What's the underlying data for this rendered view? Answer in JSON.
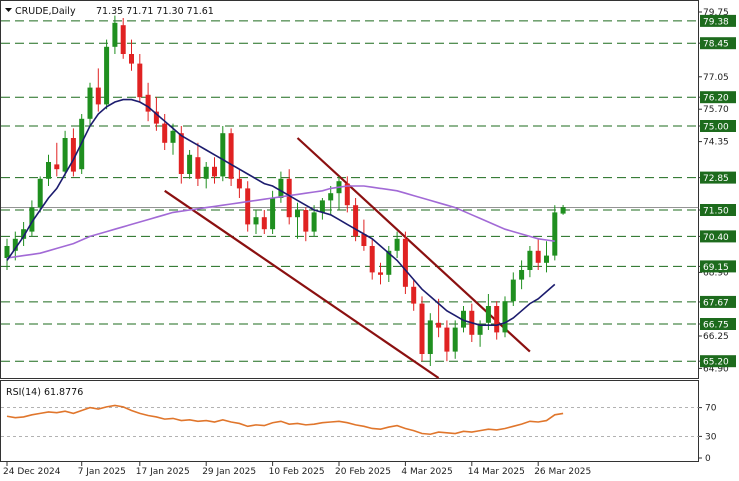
{
  "header": {
    "symbol": "CRUDE,Daily",
    "ohlc": "71.35 71.71 71.30 71.61"
  },
  "colors": {
    "bull": "#1f8f1f",
    "bear": "#e02222",
    "level_line": "#1d6b1d",
    "level_label_bg": "#1d6b1d",
    "fast_ma": "#1c1c6e",
    "slow_ma": "#a26ad6",
    "channel": "#8b1010",
    "rsi": "#e0762c",
    "last_price_line": "#555555"
  },
  "chart_data": [
    {
      "type": "candlestick",
      "title": "CRUDE,Daily",
      "ylim": [
        64.5,
        80.0
      ],
      "y_ticks": [
        "79.75",
        "78.45",
        "77.05",
        "76.20",
        "75.70",
        "75.00",
        "74.35",
        "72.85",
        "71.50",
        "70.40",
        "69.15",
        "68.90",
        "67.67",
        "66.75",
        "66.25",
        "65.20",
        "64.90"
      ],
      "x_labels": [
        "24 Dec 2024",
        "7 Jan 2025",
        "17 Jan 2025",
        "29 Jan 2025",
        "10 Feb 2025",
        "20 Feb 2025",
        "4 Mar 2025",
        "14 Mar 2025",
        "26 Mar 2025"
      ],
      "x_label_index": [
        0,
        9,
        16,
        24,
        32,
        40,
        48,
        56,
        64
      ],
      "levels": [
        79.38,
        78.45,
        76.2,
        75.0,
        72.85,
        71.5,
        70.4,
        69.15,
        67.67,
        66.75,
        65.2
      ],
      "level_labels": [
        "79.38",
        "78.45",
        "76.20",
        "75.00",
        "72.85",
        "71.50",
        "70.40",
        "69.15",
        "67.67",
        "66.75",
        "65.20"
      ],
      "candles": [
        {
          "o": 69.5,
          "h": 70.3,
          "l": 69.0,
          "c": 70.0
        },
        {
          "o": 69.8,
          "h": 70.6,
          "l": 69.4,
          "c": 70.3
        },
        {
          "o": 70.3,
          "h": 71.0,
          "l": 70.0,
          "c": 70.7
        },
        {
          "o": 70.6,
          "h": 71.9,
          "l": 70.4,
          "c": 71.6
        },
        {
          "o": 71.6,
          "h": 72.9,
          "l": 71.4,
          "c": 72.8
        },
        {
          "o": 72.8,
          "h": 73.8,
          "l": 72.5,
          "c": 73.5
        },
        {
          "o": 73.4,
          "h": 74.3,
          "l": 72.9,
          "c": 73.2
        },
        {
          "o": 73.1,
          "h": 74.8,
          "l": 72.9,
          "c": 74.5
        },
        {
          "o": 74.5,
          "h": 74.9,
          "l": 72.9,
          "c": 73.1
        },
        {
          "o": 73.2,
          "h": 75.5,
          "l": 73.0,
          "c": 75.3
        },
        {
          "o": 75.3,
          "h": 76.8,
          "l": 75.0,
          "c": 76.6
        },
        {
          "o": 76.6,
          "h": 77.4,
          "l": 75.6,
          "c": 75.9
        },
        {
          "o": 75.9,
          "h": 78.6,
          "l": 75.7,
          "c": 78.3
        },
        {
          "o": 78.3,
          "h": 79.6,
          "l": 78.0,
          "c": 79.3
        },
        {
          "o": 79.2,
          "h": 79.5,
          "l": 77.8,
          "c": 78.0
        },
        {
          "o": 78.0,
          "h": 78.6,
          "l": 77.3,
          "c": 77.6
        },
        {
          "o": 77.6,
          "h": 78.0,
          "l": 76.0,
          "c": 76.2
        },
        {
          "o": 76.3,
          "h": 76.8,
          "l": 75.2,
          "c": 75.6
        },
        {
          "o": 75.6,
          "h": 76.2,
          "l": 74.8,
          "c": 75.1
        },
        {
          "o": 75.1,
          "h": 75.5,
          "l": 74.0,
          "c": 74.3
        },
        {
          "o": 74.3,
          "h": 75.1,
          "l": 73.8,
          "c": 74.8
        },
        {
          "o": 74.7,
          "h": 75.0,
          "l": 72.6,
          "c": 73.0
        },
        {
          "o": 73.0,
          "h": 74.0,
          "l": 72.8,
          "c": 73.8
        },
        {
          "o": 73.7,
          "h": 74.3,
          "l": 72.5,
          "c": 72.8
        },
        {
          "o": 72.8,
          "h": 73.5,
          "l": 72.4,
          "c": 73.3
        },
        {
          "o": 73.3,
          "h": 73.7,
          "l": 72.6,
          "c": 72.9
        },
        {
          "o": 72.9,
          "h": 75.0,
          "l": 72.7,
          "c": 74.7
        },
        {
          "o": 74.7,
          "h": 74.9,
          "l": 72.5,
          "c": 72.8
        },
        {
          "o": 72.8,
          "h": 73.2,
          "l": 72.0,
          "c": 72.4
        },
        {
          "o": 72.4,
          "h": 72.7,
          "l": 70.6,
          "c": 70.9
        },
        {
          "o": 70.9,
          "h": 71.5,
          "l": 70.5,
          "c": 71.2
        },
        {
          "o": 71.2,
          "h": 71.5,
          "l": 70.5,
          "c": 70.7
        },
        {
          "o": 70.7,
          "h": 72.3,
          "l": 70.5,
          "c": 72.0
        },
        {
          "o": 72.0,
          "h": 73.1,
          "l": 71.8,
          "c": 72.8
        },
        {
          "o": 72.8,
          "h": 73.2,
          "l": 70.9,
          "c": 71.2
        },
        {
          "o": 71.2,
          "h": 71.8,
          "l": 70.3,
          "c": 71.5
        },
        {
          "o": 71.5,
          "h": 71.6,
          "l": 70.2,
          "c": 70.6
        },
        {
          "o": 70.6,
          "h": 71.7,
          "l": 70.4,
          "c": 71.4
        },
        {
          "o": 71.4,
          "h": 72.0,
          "l": 71.1,
          "c": 71.9
        },
        {
          "o": 71.9,
          "h": 72.5,
          "l": 71.3,
          "c": 72.2
        },
        {
          "o": 72.2,
          "h": 72.9,
          "l": 71.5,
          "c": 72.7
        },
        {
          "o": 72.6,
          "h": 72.9,
          "l": 71.4,
          "c": 71.7
        },
        {
          "o": 71.7,
          "h": 72.0,
          "l": 70.2,
          "c": 70.4
        },
        {
          "o": 70.5,
          "h": 71.1,
          "l": 69.8,
          "c": 70.0
        },
        {
          "o": 70.0,
          "h": 70.3,
          "l": 68.6,
          "c": 68.9
        },
        {
          "o": 68.9,
          "h": 69.3,
          "l": 68.4,
          "c": 68.8
        },
        {
          "o": 68.8,
          "h": 70.0,
          "l": 68.5,
          "c": 69.8
        },
        {
          "o": 69.8,
          "h": 70.6,
          "l": 69.5,
          "c": 70.3
        },
        {
          "o": 70.3,
          "h": 70.6,
          "l": 68.0,
          "c": 68.3
        },
        {
          "o": 68.3,
          "h": 68.6,
          "l": 67.3,
          "c": 67.6
        },
        {
          "o": 67.6,
          "h": 67.9,
          "l": 65.2,
          "c": 65.5
        },
        {
          "o": 65.5,
          "h": 67.2,
          "l": 65.0,
          "c": 66.9
        },
        {
          "o": 66.8,
          "h": 67.8,
          "l": 66.2,
          "c": 66.6
        },
        {
          "o": 66.6,
          "h": 66.9,
          "l": 65.2,
          "c": 65.6
        },
        {
          "o": 65.6,
          "h": 66.9,
          "l": 65.3,
          "c": 66.6
        },
        {
          "o": 66.6,
          "h": 67.5,
          "l": 66.4,
          "c": 67.3
        },
        {
          "o": 67.3,
          "h": 67.6,
          "l": 66.0,
          "c": 66.3
        },
        {
          "o": 66.3,
          "h": 66.9,
          "l": 65.8,
          "c": 66.7
        },
        {
          "o": 66.8,
          "h": 68.0,
          "l": 66.5,
          "c": 67.5
        },
        {
          "o": 67.5,
          "h": 67.7,
          "l": 66.1,
          "c": 66.4
        },
        {
          "o": 66.4,
          "h": 67.9,
          "l": 66.2,
          "c": 67.7
        },
        {
          "o": 67.7,
          "h": 68.9,
          "l": 67.5,
          "c": 68.6
        },
        {
          "o": 68.6,
          "h": 69.4,
          "l": 68.2,
          "c": 69.0
        },
        {
          "o": 69.0,
          "h": 70.0,
          "l": 68.7,
          "c": 69.8
        },
        {
          "o": 69.8,
          "h": 70.3,
          "l": 69.0,
          "c": 69.3
        },
        {
          "o": 69.3,
          "h": 70.2,
          "l": 68.9,
          "c": 69.6
        },
        {
          "o": 69.6,
          "h": 71.7,
          "l": 69.4,
          "c": 71.4
        },
        {
          "o": 71.35,
          "h": 71.71,
          "l": 71.3,
          "c": 71.61
        }
      ],
      "fast_ma": [
        69.4,
        69.9,
        70.4,
        71.0,
        71.5,
        72.0,
        72.4,
        73.0,
        73.6,
        74.3,
        75.0,
        75.5,
        75.8,
        76.0,
        76.1,
        76.1,
        76.0,
        75.8,
        75.5,
        75.2,
        74.9,
        74.6,
        74.4,
        74.2,
        74.0,
        73.8,
        73.6,
        73.4,
        73.2,
        73.0,
        72.8,
        72.6,
        72.5,
        72.3,
        72.1,
        71.9,
        71.7,
        71.5,
        71.4,
        71.3,
        71.1,
        70.9,
        70.7,
        70.5,
        70.3,
        70.0,
        69.7,
        69.4,
        69.0,
        68.6,
        68.2,
        67.9,
        67.6,
        67.3,
        67.1,
        66.9,
        66.8,
        66.7,
        66.7,
        66.7,
        66.8,
        67.0,
        67.3,
        67.6,
        67.8,
        68.1,
        68.4
      ],
      "slow_ma": [
        69.5,
        69.55,
        69.6,
        69.65,
        69.7,
        69.8,
        69.9,
        70.0,
        70.1,
        70.25,
        70.4,
        70.5,
        70.6,
        70.7,
        70.8,
        70.9,
        71.0,
        71.1,
        71.2,
        71.3,
        71.4,
        71.45,
        71.5,
        71.55,
        71.6,
        71.65,
        71.7,
        71.75,
        71.8,
        71.85,
        71.9,
        71.95,
        72.0,
        72.05,
        72.1,
        72.15,
        72.2,
        72.25,
        72.3,
        72.4,
        72.45,
        72.5,
        72.5,
        72.5,
        72.45,
        72.4,
        72.35,
        72.3,
        72.2,
        72.1,
        72.0,
        71.9,
        71.8,
        71.7,
        71.6,
        71.45,
        71.3,
        71.15,
        71.0,
        70.85,
        70.7,
        70.6,
        70.5,
        70.4,
        70.3,
        70.25,
        70.2
      ],
      "channel_upper": [
        {
          "i": 35,
          "v": 74.5
        },
        {
          "i": 63,
          "v": 65.6
        }
      ],
      "channel_lower": [
        {
          "i": 19,
          "v": 72.3
        },
        {
          "i": 52,
          "v": 64.5
        }
      ]
    },
    {
      "type": "line",
      "title": "RSI(14) 61.8776",
      "ylim": [
        0,
        100
      ],
      "y_ticks": [
        "70",
        "30",
        "0"
      ],
      "levels": [
        70,
        30
      ],
      "values": [
        58,
        56,
        57,
        60,
        62,
        64,
        63,
        65,
        62,
        66,
        70,
        68,
        71,
        73,
        71,
        66,
        62,
        59,
        57,
        54,
        55,
        52,
        53,
        51,
        52,
        50,
        53,
        50,
        48,
        44,
        46,
        45,
        49,
        51,
        47,
        48,
        46,
        47,
        49,
        50,
        51,
        49,
        46,
        44,
        41,
        40,
        43,
        45,
        41,
        38,
        34,
        33,
        36,
        35,
        34,
        37,
        36,
        38,
        40,
        39,
        41,
        44,
        47,
        51,
        50,
        52,
        60,
        61.88
      ]
    }
  ]
}
